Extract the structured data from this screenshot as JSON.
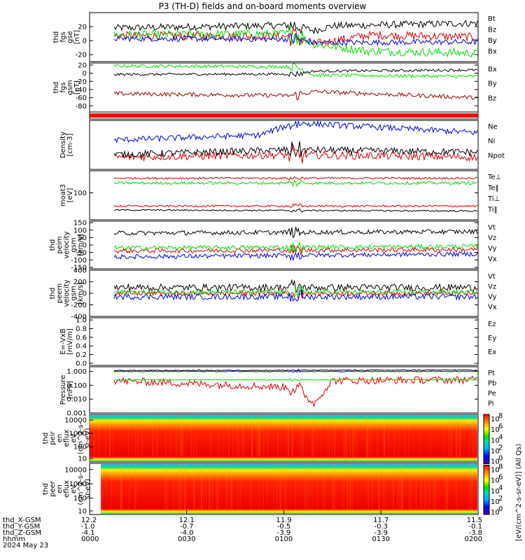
{
  "title": "P3 (TH-D) fields and on-board moments overview",
  "colors": {
    "black": "#000000",
    "red": "#dd0000",
    "green": "#00dd00",
    "blue": "#0000dd",
    "darkred": "#990000"
  },
  "chart_data": [
    {
      "type": "line",
      "ylabel": [
        "thd",
        "fgs",
        "gse",
        "[nT]"
      ],
      "ylim": [
        -30,
        40
      ],
      "yticks": [
        "20",
        "0",
        "-20"
      ],
      "yticks_values": [
        20,
        0,
        -20
      ],
      "series": [
        {
          "name": "Bt",
          "color": "#000000",
          "mean": 20,
          "noise": 5,
          "trend": [
            [
              0,
              18
            ],
            [
              0.5,
              22
            ],
            [
              0.55,
              14
            ],
            [
              0.6,
              21
            ],
            [
              1,
              25
            ]
          ]
        },
        {
          "name": "Bz",
          "color": "#dd0000",
          "mean": 5,
          "noise": 6,
          "trend": [
            [
              0,
              7
            ],
            [
              0.5,
              6
            ],
            [
              0.55,
              -5
            ],
            [
              0.7,
              8
            ],
            [
              1,
              5
            ]
          ]
        },
        {
          "name": "By",
          "color": "#00dd00",
          "mean": 0,
          "noise": 6,
          "trend": [
            [
              0,
              8
            ],
            [
              0.5,
              10
            ],
            [
              0.55,
              -5
            ],
            [
              0.7,
              -15
            ],
            [
              1,
              -18
            ]
          ]
        },
        {
          "name": "Bx",
          "color": "#0000dd",
          "mean": 2,
          "noise": 4,
          "trend": [
            [
              0,
              3
            ],
            [
              0.5,
              2
            ],
            [
              0.55,
              -3
            ],
            [
              1,
              -2
            ]
          ]
        }
      ]
    },
    {
      "type": "line",
      "ylabel": [
        "thd",
        "fgs",
        "gsm",
        "[nT]"
      ],
      "ylim": [
        -95,
        25
      ],
      "yticks": [
        "20",
        "0",
        "-20",
        "-40",
        "-60",
        "-80"
      ],
      "yticks_values": [
        20,
        0,
        -20,
        -40,
        -60,
        -80
      ],
      "series": [
        {
          "name": "Bx",
          "color": "#00dd00",
          "mean": 15,
          "noise": 4,
          "trend": [
            [
              0,
              18
            ],
            [
              0.5,
              16
            ],
            [
              0.55,
              -5
            ],
            [
              1,
              -8
            ]
          ]
        },
        {
          "name": "By",
          "color": "#000000",
          "mean": 0,
          "noise": 3,
          "trend": [
            [
              0,
              -3
            ],
            [
              0.5,
              -2
            ],
            [
              0.55,
              5
            ],
            [
              1,
              8
            ]
          ]
        },
        {
          "name": "Bz",
          "color": "#990000",
          "mean": -50,
          "noise": 5,
          "trend": [
            [
              0,
              -50
            ],
            [
              0.5,
              -55
            ],
            [
              0.55,
              -45
            ],
            [
              1,
              -60
            ]
          ]
        }
      ]
    },
    {
      "type": "bar",
      "description_note": "",
      "ylim": [
        0,
        1
      ],
      "series": [
        {
          "name": "",
          "color": "#ff0000",
          "values": [
            1
          ]
        }
      ]
    },
    {
      "type": "line",
      "ylabel": [
        "Density",
        "[cm-3]"
      ],
      "ylim": [
        0,
        1
      ],
      "yticks": [],
      "series": [
        {
          "name": "Ne",
          "color": "#dd0000",
          "trend": [
            [
              0,
              0.25
            ],
            [
              0.5,
              0.3
            ],
            [
              1,
              0.25
            ]
          ],
          "noise": 0.08
        },
        {
          "name": "Ni",
          "color": "#000000",
          "trend": [
            [
              0,
              0.3
            ],
            [
              0.5,
              0.4
            ],
            [
              1,
              0.35
            ]
          ],
          "noise": 0.07
        },
        {
          "name": "Npot",
          "color": "#0000dd",
          "trend": [
            [
              0,
              0.6
            ],
            [
              0.4,
              0.7
            ],
            [
              0.5,
              0.95
            ],
            [
              1,
              0.75
            ]
          ],
          "noise": 0.06
        }
      ]
    },
    {
      "type": "line",
      "ylabel": [
        "moat3",
        "[eV]"
      ],
      "ylim": [
        0,
        1
      ],
      "yticks": [
        "100"
      ],
      "yticks_values": [
        0.55
      ],
      "series": [
        {
          "name": "Te⊥",
          "color": "#dd0000",
          "trend": [
            [
              0,
              0.85
            ],
            [
              1,
              0.85
            ]
          ],
          "noise": 0.02
        },
        {
          "name": "Te‖",
          "color": "#000000",
          "trend": [
            [
              0,
              0.2
            ],
            [
              1,
              0.18
            ]
          ],
          "noise": 0.015
        },
        {
          "name": "Ti⊥",
          "color": "#dd0000",
          "trend": [
            [
              0,
              0.28
            ],
            [
              1,
              0.28
            ]
          ],
          "noise": 0.02
        },
        {
          "name": "Ti‖",
          "color": "#00dd00",
          "trend": [
            [
              0,
              0.75
            ],
            [
              1,
              0.75
            ]
          ],
          "noise": 0.03
        }
      ],
      "legend_colors": [
        "#dd0000",
        "#000000",
        "#dd0000",
        "#00dd00"
      ]
    },
    {
      "type": "line",
      "ylabel": [
        "thd",
        "peim",
        "velocity",
        "gsm",
        "[km/s]"
      ],
      "ylim": [
        -160,
        160
      ],
      "yticks": [
        "150",
        "100",
        "50",
        "0",
        "-50",
        "-100",
        "-150"
      ],
      "yticks_values": [
        150,
        100,
        50,
        0,
        -50,
        -100,
        -150
      ],
      "series": [
        {
          "name": "Vt",
          "color": "#000000",
          "trend": [
            [
              0,
              80
            ],
            [
              1,
              90
            ]
          ],
          "noise": 15
        },
        {
          "name": "Vz",
          "color": "#dd0000",
          "trend": [
            [
              0,
              -40
            ],
            [
              1,
              -30
            ]
          ],
          "noise": 15
        },
        {
          "name": "Vy",
          "color": "#00dd00",
          "trend": [
            [
              0,
              -20
            ],
            [
              1,
              -10
            ]
          ],
          "noise": 15
        },
        {
          "name": "Vx",
          "color": "#0000dd",
          "trend": [
            [
              0,
              -80
            ],
            [
              1,
              -60
            ]
          ],
          "noise": 15
        }
      ]
    },
    {
      "type": "line",
      "ylabel": [
        "thd",
        "peem",
        "velocity",
        "gsm",
        "[km/s]"
      ],
      "ylim": [
        -400,
        400
      ],
      "yticks": [
        "400",
        "200",
        "0",
        "-200",
        "-400"
      ],
      "yticks_values": [
        400,
        200,
        0,
        -200,
        -400
      ],
      "series": [
        {
          "name": "Vt",
          "color": "#000000",
          "trend": [
            [
              0,
              100
            ],
            [
              1,
              100
            ]
          ],
          "noise": 60
        },
        {
          "name": "Vz",
          "color": "#dd0000",
          "trend": [
            [
              0,
              0
            ],
            [
              1,
              0
            ]
          ],
          "noise": 40
        },
        {
          "name": "Vy",
          "color": "#00dd00",
          "trend": [
            [
              0,
              20
            ],
            [
              1,
              20
            ]
          ],
          "noise": 40
        },
        {
          "name": "Vx",
          "color": "#0000dd",
          "trend": [
            [
              0,
              -60
            ],
            [
              1,
              -60
            ]
          ],
          "noise": 50
        }
      ]
    },
    {
      "type": "line",
      "ylabel": [
        "E=-VxB",
        "[mV/m]"
      ],
      "ylim": [
        -0.05,
        1.05
      ],
      "yticks": [
        "1.0",
        "0.8",
        "0.6",
        "0.4",
        "0.2",
        "0.0"
      ],
      "yticks_values": [
        1.0,
        0.8,
        0.6,
        0.4,
        0.2,
        0.0
      ],
      "series": [],
      "legend": [
        {
          "name": "Ez",
          "color": "#dd0000"
        },
        {
          "name": "Ey",
          "color": "#00dd00"
        },
        {
          "name": "Ex",
          "color": "#0000dd"
        }
      ]
    },
    {
      "type": "line",
      "ylabel": [
        "Pressure",
        "[nPa]"
      ],
      "ylim": [
        0,
        1
      ],
      "yticks": [
        "1.000",
        "0.100",
        "0.010",
        "0.001"
      ],
      "yticks_values": [
        0.9,
        0.6,
        0.3,
        0.0
      ],
      "series": [
        {
          "name": "Pt",
          "color": "#000000",
          "trend": [
            [
              0,
              0.92
            ],
            [
              1,
              0.93
            ]
          ],
          "noise": 0.01
        },
        {
          "name": "Pb",
          "color": "#dd0000",
          "trend": [
            [
              0,
              0.7
            ],
            [
              0.5,
              0.55
            ],
            [
              0.55,
              0.2
            ],
            [
              0.6,
              0.7
            ],
            [
              1,
              0.72
            ]
          ],
          "noise": 0.08
        },
        {
          "name": "Pe",
          "color": "#00dd00",
          "trend": [
            [
              0,
              0.72
            ],
            [
              1,
              0.72
            ]
          ],
          "noise": 0.01
        },
        {
          "name": "Pi",
          "color": "#0000dd",
          "trend": [
            [
              0,
              0.9
            ],
            [
              1,
              0.9
            ]
          ],
          "noise": 0.01
        }
      ]
    },
    {
      "type": "heatmap",
      "ylabel": [
        "thd",
        "peir",
        "en",
        "eflux",
        "eV",
        "(cm^2-s-",
        "sr-eV)"
      ],
      "yticks": [
        "10000",
        "1000",
        "100",
        "10"
      ]
    },
    {
      "type": "heatmap",
      "ylabel": [
        "thd",
        "peer",
        "en",
        "eflux",
        "eV",
        "(cm^2-s-",
        "sr-eV)"
      ],
      "yticks": [
        "10000",
        "1000",
        "100",
        "10"
      ]
    }
  ],
  "colorbar": {
    "label": "[eV/(cm^2-s-sr-eV)] (All Qs)",
    "ticks_top": [
      "10",
      "10",
      "10",
      "10",
      "10"
    ],
    "exponents_top": [
      "8",
      "6",
      "4",
      "2",
      "0"
    ],
    "ticks_bottom": [
      "10",
      "10",
      "10",
      "10",
      "10"
    ],
    "exponents_bottom": [
      "8",
      "6",
      "4",
      "2",
      "0"
    ]
  },
  "x_axis": {
    "row_labels": [
      "thd_X-GSM",
      "thd_Y-GSM",
      "thd_Z-GSM",
      "hhmm",
      "2024 May 23"
    ],
    "columns": [
      {
        "vals": [
          "12.2",
          "-1.0",
          "-4.1",
          "0000"
        ]
      },
      {
        "vals": [
          "12.1",
          "-0.7",
          "-4.0",
          "0030"
        ]
      },
      {
        "vals": [
          "11.9",
          "-0.5",
          "-3.9",
          "0100"
        ]
      },
      {
        "vals": [
          "11.7",
          "-0.3",
          "-3.9",
          "0130"
        ]
      },
      {
        "vals": [
          "11.5",
          "-0.1",
          "-3.8",
          "0200"
        ]
      }
    ]
  },
  "legend_panels": [
    [
      "Bt",
      "Bz",
      "By",
      "Bx"
    ],
    [
      "Bx",
      "By",
      "Bz"
    ],
    [],
    [
      "Ne",
      "Ni",
      "Npot"
    ],
    [
      "Te⊥",
      "Te‖",
      "Ti⊥",
      "Ti‖"
    ],
    [
      "Vt",
      "Vz",
      "Vy",
      "Vx"
    ],
    [
      "Vt",
      "Vz",
      "Vy",
      "Vx"
    ],
    [
      "Ez",
      "Ey",
      "Ex"
    ],
    [
      "Pt",
      "Pb",
      "Pe",
      "Pi"
    ],
    [],
    []
  ]
}
